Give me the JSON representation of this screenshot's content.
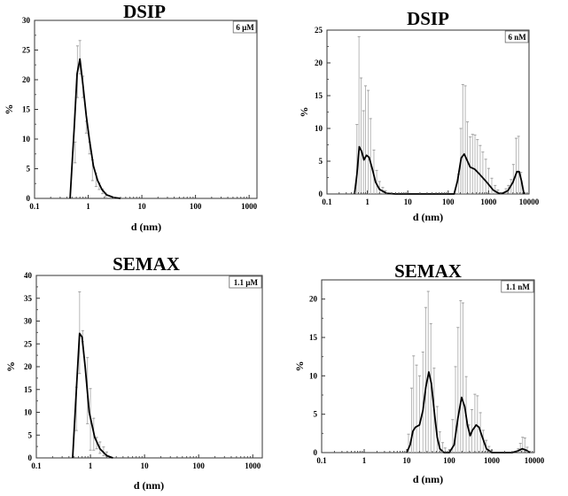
{
  "chart_data": [
    {
      "type": "line",
      "title": "DSIP",
      "annotation": "6 µM",
      "xlabel": "d (nm)",
      "ylabel": "%",
      "xscale": "log",
      "xlim": [
        0.1,
        1400
      ],
      "ylim": [
        0,
        30
      ],
      "xticks": [
        "0.1",
        "1",
        "10",
        "100",
        "1000"
      ],
      "yticks": [
        "0",
        "5",
        "10",
        "15",
        "20",
        "25",
        "30"
      ],
      "grid": false,
      "error_style": "range",
      "curve": [
        [
          0.46,
          0
        ],
        [
          0.55,
          12
        ],
        [
          0.62,
          21
        ],
        [
          0.7,
          23.5
        ],
        [
          0.8,
          19
        ],
        [
          0.92,
          14
        ],
        [
          1.05,
          10
        ],
        [
          1.25,
          5.5
        ],
        [
          1.5,
          3
        ],
        [
          1.8,
          1.5
        ],
        [
          2.2,
          0.6
        ],
        [
          3,
          0.15
        ],
        [
          4,
          0
        ]
      ],
      "error_bars": [
        [
          0.57,
          6,
          9.5
        ],
        [
          0.63,
          17,
          25.7
        ],
        [
          0.7,
          21,
          26.6
        ],
        [
          0.8,
          17,
          20.6
        ],
        [
          0.92,
          11,
          13
        ],
        [
          1.06,
          7.5,
          9.5
        ],
        [
          1.2,
          3,
          6.5
        ],
        [
          1.4,
          2,
          4.2
        ],
        [
          1.6,
          1.5,
          2.6
        ],
        [
          1.85,
          0.8,
          1.6
        ],
        [
          2.1,
          0.3,
          0.9
        ]
      ]
    },
    {
      "type": "line",
      "title": "DSIP",
      "annotation": "6 nM",
      "xlabel": "d (nm)",
      "ylabel": "%",
      "xscale": "log",
      "xlim": [
        0.1,
        10000
      ],
      "ylim": [
        0,
        25
      ],
      "xticks": [
        "0.1",
        "1",
        "10",
        "100",
        "1000",
        "10000"
      ],
      "yticks": [
        "0",
        "5",
        "10",
        "15",
        "20",
        "25"
      ],
      "grid": false,
      "error_style": "from-zero",
      "curve": [
        [
          0.48,
          0
        ],
        [
          0.55,
          3
        ],
        [
          0.63,
          7.2
        ],
        [
          0.72,
          6.5
        ],
        [
          0.82,
          5.2
        ],
        [
          0.95,
          5.9
        ],
        [
          1.1,
          5.6
        ],
        [
          1.3,
          4
        ],
        [
          1.6,
          1.8
        ],
        [
          2,
          0.7
        ],
        [
          3,
          0.1
        ],
        [
          5,
          0
        ],
        [
          140,
          0
        ],
        [
          170,
          2
        ],
        [
          210,
          5.5
        ],
        [
          250,
          6.1
        ],
        [
          300,
          5
        ],
        [
          350,
          4.1
        ],
        [
          450,
          3.8
        ],
        [
          600,
          3
        ],
        [
          900,
          1.8
        ],
        [
          1300,
          0.6
        ],
        [
          1800,
          0.1
        ],
        [
          2200,
          0.1
        ],
        [
          3000,
          0.5
        ],
        [
          4000,
          1.8
        ],
        [
          5000,
          3.4
        ],
        [
          5700,
          3.4
        ],
        [
          6500,
          2
        ],
        [
          7500,
          0
        ]
      ],
      "error_bars": [
        [
          0.55,
          0,
          10.6
        ],
        [
          0.62,
          0,
          24
        ],
        [
          0.7,
          0,
          17.7
        ],
        [
          0.8,
          0,
          12.7
        ],
        [
          0.9,
          0,
          16.5
        ],
        [
          1.05,
          0,
          15.8
        ],
        [
          1.2,
          0,
          11.5
        ],
        [
          1.45,
          0,
          6.7
        ],
        [
          1.7,
          0,
          3.6
        ],
        [
          2.0,
          0,
          1.9
        ],
        [
          2.4,
          0,
          1.0
        ],
        [
          2.8,
          0,
          0.5
        ],
        [
          180,
          0,
          3
        ],
        [
          205,
          0,
          10
        ],
        [
          230,
          0,
          16.7
        ],
        [
          265,
          0,
          16.5
        ],
        [
          300,
          0,
          11
        ],
        [
          350,
          0,
          8.7
        ],
        [
          400,
          0,
          9.1
        ],
        [
          460,
          0,
          9
        ],
        [
          530,
          0,
          8.3
        ],
        [
          620,
          0,
          7.4
        ],
        [
          720,
          0,
          6.4
        ],
        [
          850,
          0,
          5.3
        ],
        [
          1000,
          0,
          3.9
        ],
        [
          1200,
          0,
          2.4
        ],
        [
          1450,
          0,
          1.3
        ],
        [
          1700,
          0,
          0.6
        ],
        [
          2700,
          0,
          0.8
        ],
        [
          3100,
          0,
          1.3
        ],
        [
          3600,
          0,
          2.2
        ],
        [
          4100,
          0,
          4.5
        ],
        [
          4800,
          0,
          8.5
        ],
        [
          5500,
          0,
          8.8
        ],
        [
          6300,
          0,
          3.3
        ]
      ]
    },
    {
      "type": "line",
      "title": "SEMAX",
      "annotation": "1.1 µM",
      "xlabel": "d (nm)",
      "ylabel": "%",
      "xscale": "log",
      "xlim": [
        0.1,
        1500
      ],
      "ylim": [
        0,
        40
      ],
      "xticks": [
        "0.1",
        "1",
        "10",
        "100",
        "1000"
      ],
      "yticks": [
        "0",
        "5",
        "10",
        "15",
        "20",
        "25",
        "30",
        "35",
        "40"
      ],
      "grid": false,
      "error_style": "range",
      "curve": [
        [
          0.47,
          0
        ],
        [
          0.55,
          15
        ],
        [
          0.63,
          27.3
        ],
        [
          0.7,
          26.5
        ],
        [
          0.8,
          20
        ],
        [
          0.95,
          10
        ],
        [
          1.2,
          4.5
        ],
        [
          1.5,
          2
        ],
        [
          2,
          0.5
        ],
        [
          2.6,
          0
        ]
      ],
      "error_bars": [
        [
          0.55,
          6,
          15.5
        ],
        [
          0.63,
          18.5,
          36.4
        ],
        [
          0.72,
          25.5,
          27.9
        ],
        [
          0.88,
          7.5,
          22
        ],
        [
          1.0,
          1.7,
          15.2
        ],
        [
          1.15,
          1.7,
          8.7
        ],
        [
          1.3,
          2,
          4.5
        ],
        [
          1.5,
          1,
          3.5
        ],
        [
          1.75,
          0.5,
          2.4
        ],
        [
          2.0,
          0.3,
          1.3
        ]
      ]
    },
    {
      "type": "line",
      "title": "SEMAX",
      "annotation": "1.1 nM",
      "xlabel": "d (nm)",
      "ylabel": "%",
      "xscale": "log",
      "xlim": [
        0.1,
        10000
      ],
      "ylim": [
        0,
        22.5
      ],
      "xticks": [
        "0.1",
        "1",
        "10",
        "100",
        "1000",
        "10000"
      ],
      "yticks": [
        "0",
        "5",
        "10",
        "15",
        "20"
      ],
      "grid": false,
      "error_style": "from-zero",
      "curve": [
        [
          10,
          0
        ],
        [
          12,
          1
        ],
        [
          14,
          2.8
        ],
        [
          16,
          3.3
        ],
        [
          20,
          3.6
        ],
        [
          24,
          5.5
        ],
        [
          28,
          8.5
        ],
        [
          33,
          10.5
        ],
        [
          38,
          9
        ],
        [
          45,
          5
        ],
        [
          52,
          2
        ],
        [
          60,
          0.5
        ],
        [
          75,
          0
        ],
        [
          100,
          0
        ],
        [
          130,
          1
        ],
        [
          160,
          4.5
        ],
        [
          195,
          7.2
        ],
        [
          230,
          6
        ],
        [
          270,
          3.5
        ],
        [
          310,
          2.2
        ],
        [
          350,
          2.9
        ],
        [
          430,
          3.6
        ],
        [
          500,
          3.3
        ],
        [
          600,
          2
        ],
        [
          750,
          0.5
        ],
        [
          1000,
          0
        ],
        [
          3000,
          0
        ],
        [
          4000,
          0.2
        ],
        [
          5200,
          0.5
        ],
        [
          6500,
          0.3
        ],
        [
          8000,
          0
        ]
      ],
      "error_bars": [
        [
          11,
          0,
          2.4
        ],
        [
          13,
          0,
          8.4
        ],
        [
          14.5,
          0,
          12.6
        ],
        [
          17,
          0,
          11.4
        ],
        [
          20,
          0,
          10
        ],
        [
          24,
          0,
          13.1
        ],
        [
          28,
          0,
          18.9
        ],
        [
          32,
          0,
          21
        ],
        [
          37,
          0,
          16.8
        ],
        [
          44,
          0,
          11
        ],
        [
          52,
          0,
          6
        ],
        [
          60,
          0,
          2.7
        ],
        [
          70,
          0,
          1.3
        ],
        [
          80,
          0,
          0.6
        ],
        [
          120,
          0,
          4.3
        ],
        [
          140,
          0,
          11.2
        ],
        [
          160,
          0,
          16.3
        ],
        [
          185,
          0,
          19.8
        ],
        [
          210,
          0,
          19.5
        ],
        [
          250,
          0,
          9.9
        ],
        [
          290,
          0,
          3.6
        ],
        [
          340,
          0,
          5.6
        ],
        [
          400,
          0,
          7.6
        ],
        [
          460,
          0,
          7.4
        ],
        [
          540,
          0,
          5.2
        ],
        [
          630,
          0,
          2.9
        ],
        [
          740,
          0,
          1.6
        ],
        [
          860,
          0,
          0.8
        ],
        [
          1000,
          0,
          0.3
        ],
        [
          4200,
          0,
          0.5
        ],
        [
          4700,
          0,
          1.2
        ],
        [
          5300,
          0,
          2
        ],
        [
          6000,
          0,
          1.9
        ],
        [
          6800,
          0,
          0.7
        ]
      ]
    }
  ]
}
